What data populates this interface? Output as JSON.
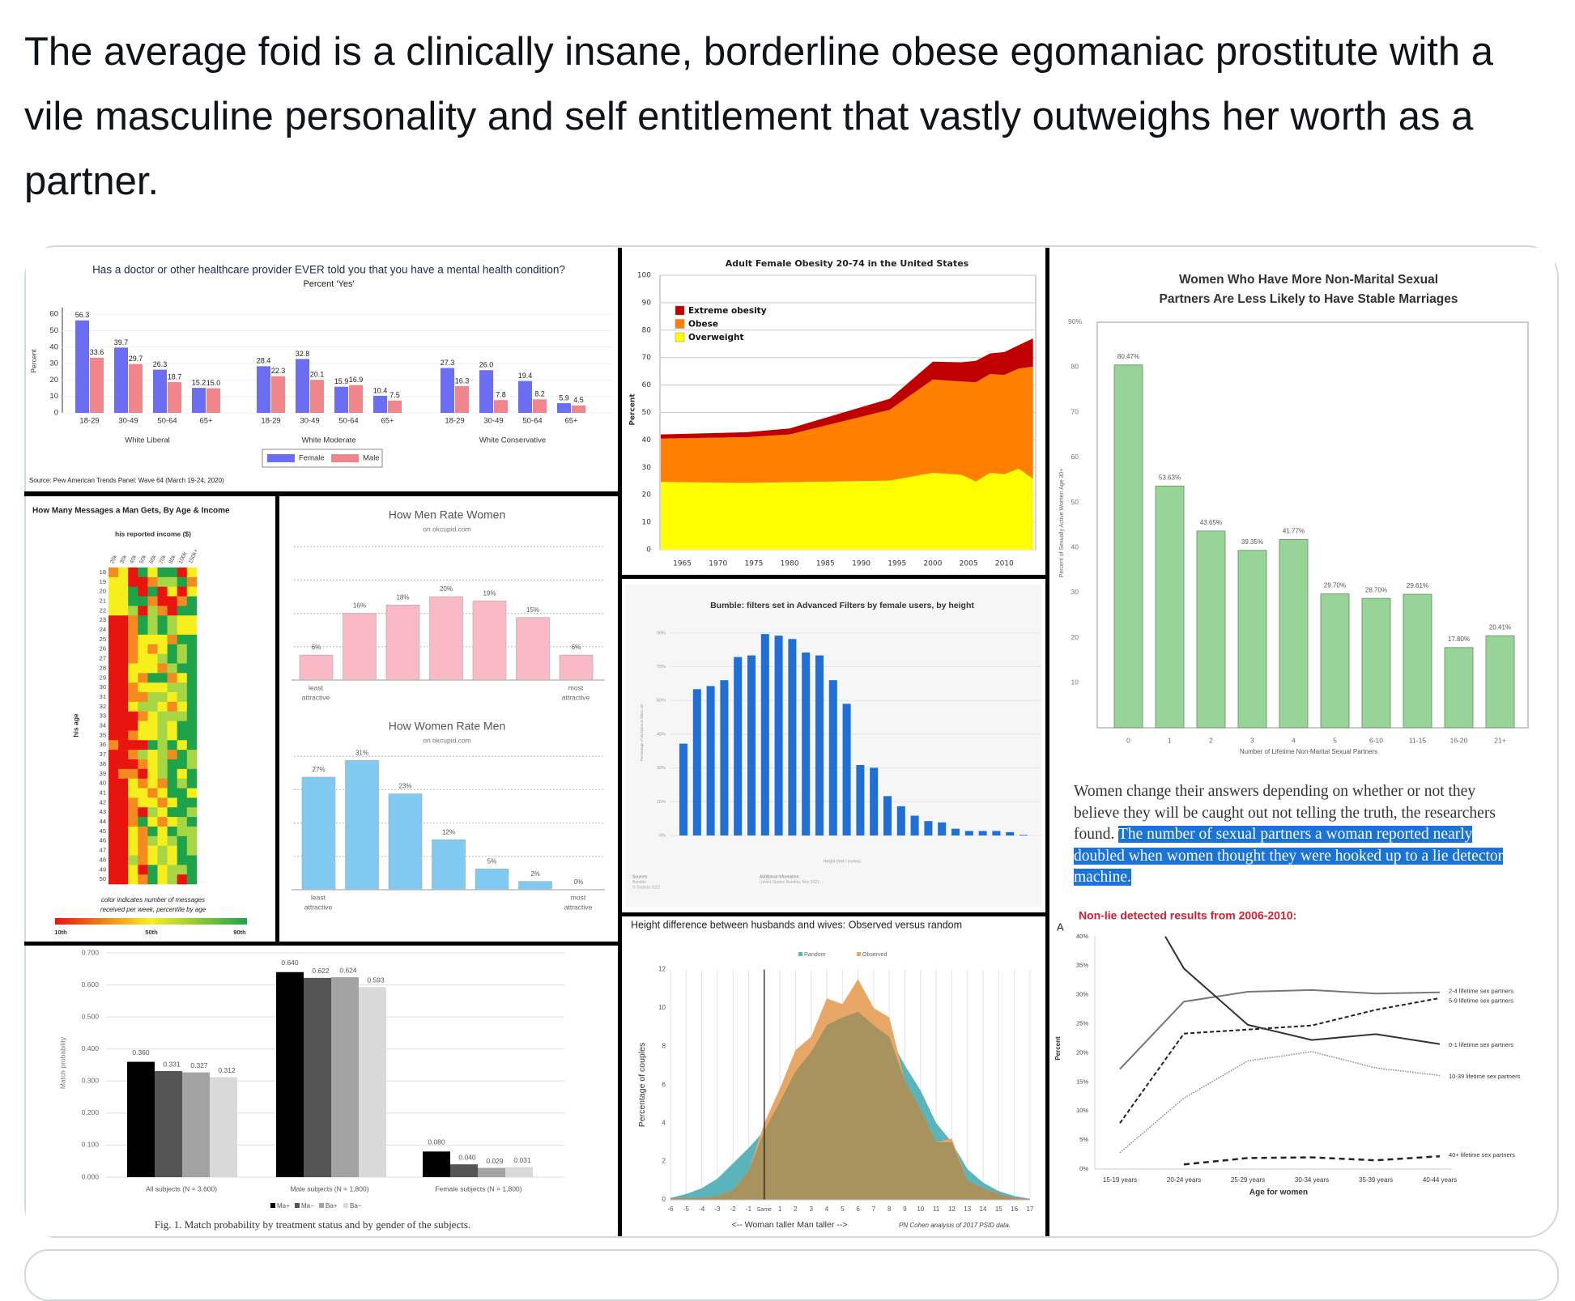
{
  "post": {
    "text": "The average foid is a clinically insane, borderline obese egomaniac prostitute with a vile masculine personality and self entitlement that vastly outweighs her worth as a partner."
  },
  "article_excerpt": {
    "text": "Women change their answers depending on whether or not they believe they will be caught out not telling the truth, the researchers found. ",
    "highlighted_text": "The number of sexual partners a woman reported nearly doubled when women thought they were hooked up to a lie detector machine.",
    "highlight_color": "#1a73d9"
  },
  "chart_data": [
    {
      "type": "bar",
      "title": "Has a doctor or other healthcare provider EVER told you that you have a mental health condition?",
      "subtitle": "Percent 'Yes'",
      "ylabel": "Percent",
      "ylim": [
        0,
        70
      ],
      "yticks": [
        0,
        10,
        20,
        30,
        40,
        50,
        60
      ],
      "groups": [
        "White Liberal",
        "White Moderate",
        "White Conservative"
      ],
      "categories": [
        "18-29",
        "30-49",
        "50-64",
        "65+"
      ],
      "series": [
        {
          "name": "Female",
          "color": "#6b6ef2",
          "values": [
            [
              56.3,
              39.7,
              26.3,
              15.2
            ],
            [
              28.4,
              32.8,
              15.9,
              10.4
            ],
            [
              27.3,
              26.0,
              19.4,
              5.9
            ]
          ],
          "value_labels": [
            [
              "56.3",
              "39.7",
              "26.3",
              "15.2"
            ],
            [
              "28.4",
              "32.8",
              "15.9",
              "10.4"
            ],
            [
              "27.3",
              "26.0",
              "19.4",
              "5.9"
            ]
          ]
        },
        {
          "name": "Male",
          "color": "#f0868c",
          "values": [
            [
              33.6,
              29.7,
              18.7,
              15.0
            ],
            [
              22.3,
              20.1,
              16.9,
              7.5
            ],
            [
              16.3,
              7.8,
              8.2,
              4.5
            ]
          ],
          "value_labels": [
            [
              "33.6",
              "29.7",
              "18.7",
              "15.0"
            ],
            [
              "22.3",
              "20.1",
              "16.9",
              "7.5"
            ],
            [
              "16.3",
              "7.8",
              "8.2",
              "4.5"
            ]
          ]
        }
      ],
      "legend_position": "bottom",
      "source": "Source: Pew American Trends Panel: Wave 64 (March 19-24, 2020)"
    },
    {
      "type": "heatmap",
      "title": "How Many Messages a Man Gets, By Age & Income",
      "xlabel": "his reported income ($)",
      "ylabel": "his age",
      "x": [
        "20k",
        "30k",
        "40k",
        "50k",
        "60k",
        "70k",
        "80k",
        "100k",
        "150k+"
      ],
      "y": [
        "18",
        "19",
        "20",
        "21",
        "22",
        "23",
        "24",
        "25",
        "26",
        "27",
        "28",
        "29",
        "30",
        "31",
        "32",
        "33",
        "34",
        "35",
        "36",
        "37",
        "38",
        "39",
        "40",
        "41",
        "42",
        "43",
        "44",
        "45",
        "46",
        "47",
        "48",
        "49",
        "50"
      ],
      "level_percentiles": [
        10,
        30,
        50,
        70,
        90
      ],
      "level_colors": [
        "#e8150f",
        "#f58a1f",
        "#f7ef1c",
        "#a6d643",
        "#1ea34a"
      ],
      "rows": [
        "120424402",
        "220013341",
        "224040202",
        "224410014",
        "223031044",
        "001434322",
        "001434322",
        "001222144",
        "001212434",
        "001223434",
        "002221344",
        "002144124",
        "001222334",
        "001133234",
        "002332124",
        "000123334",
        "000223244",
        "001223244",
        "100043424",
        "001323143",
        "000123443",
        "011023424",
        "002121434",
        "002212442",
        "001221244",
        "001032443",
        "001421234",
        "002142433",
        "002132343",
        "002123243",
        "003123244",
        "002042334",
        "002142304"
      ],
      "caption": [
        "color indicates number of messages",
        "received per week, percentile by age"
      ],
      "scale_labels": [
        "10th",
        "50th",
        "90th"
      ]
    },
    {
      "type": "bar",
      "title": "How Men Rate Women",
      "subtitle": "on okcupid.com",
      "values": [
        6,
        16,
        18,
        20,
        19,
        15,
        6
      ],
      "value_labels": [
        "6%",
        "16%",
        "18%",
        "20%",
        "19%",
        "15%",
        "6%"
      ],
      "axis_left": [
        "least",
        "attractive"
      ],
      "axis_right": [
        "most",
        "attractive"
      ],
      "color": "#f9b9c5",
      "grid_values": [
        8,
        16,
        24,
        32
      ]
    },
    {
      "type": "bar",
      "title": "How Women Rate Men",
      "subtitle": "on okcupid.com",
      "values": [
        27,
        31,
        23,
        12,
        5,
        2,
        0
      ],
      "value_labels": [
        "27%",
        "31%",
        "23%",
        "12%",
        "5%",
        "2%",
        "0%"
      ],
      "axis_left": [
        "least",
        "attractive"
      ],
      "axis_right": [
        "most",
        "attractive"
      ],
      "color": "#80c9f0",
      "grid_values": [
        8,
        16,
        24,
        32
      ]
    },
    {
      "type": "bar",
      "ylabel": "Match probability",
      "ylim": [
        0,
        0.7
      ],
      "yticks": [
        0,
        0.1,
        0.2,
        0.3,
        0.4,
        0.5,
        0.6,
        0.7
      ],
      "ytick_labels": [
        "0.000",
        "0.100",
        "0.200",
        "0.300",
        "0.400",
        "0.500",
        "0.600",
        "0.700"
      ],
      "categories": [
        "All subjects (N = 3,600)",
        "Male subjects (N = 1,800)",
        "Female subjects (N = 1,800)"
      ],
      "series": [
        {
          "name": "Ma+",
          "color": "#000000",
          "values": [
            0.36,
            0.64,
            0.08
          ],
          "value_labels": [
            "0.360",
            "0.640",
            "0.080"
          ]
        },
        {
          "name": "Ma−",
          "color": "#555555",
          "values": [
            0.331,
            0.622,
            0.04
          ],
          "value_labels": [
            "0.331",
            "0.622",
            "0.040"
          ]
        },
        {
          "name": "Ba+",
          "color": "#a3a3a3",
          "values": [
            0.327,
            0.624,
            0.029
          ],
          "value_labels": [
            "0.327",
            "0.624",
            "0.029"
          ]
        },
        {
          "name": "Ba−",
          "color": "#d9d9d9",
          "values": [
            0.312,
            0.593,
            0.031
          ],
          "value_labels": [
            "0.312",
            "0.593",
            "0.031"
          ]
        }
      ],
      "legend_position": "bottom",
      "caption": "Fig. 1. Match probability by treatment status and by gender of the subjects."
    },
    {
      "type": "area",
      "stacked": true,
      "title": "Adult Female Obesity 20-74 in the United States",
      "ylabel": "Percent",
      "ylim": [
        0,
        100
      ],
      "yticks": [
        0,
        10,
        20,
        30,
        40,
        50,
        60,
        70,
        80,
        90,
        100
      ],
      "xticks": [
        1965,
        1970,
        1975,
        1980,
        1985,
        1990,
        1995,
        2000,
        2005,
        2010
      ],
      "x": [
        1962,
        1974,
        1980,
        1994,
        2000,
        2004,
        2006,
        2008,
        2010,
        2012,
        2014
      ],
      "series": [
        {
          "name": "Overweight",
          "color": "#ffff00",
          "values": [
            24.7,
            24.3,
            24.6,
            25.2,
            28.0,
            27.3,
            24.8,
            28.0,
            27.5,
            29.5,
            25.8
          ]
        },
        {
          "name": "Obese",
          "color": "#ff8000",
          "values": [
            15.8,
            16.7,
            17.4,
            25.8,
            34.0,
            34.0,
            36.2,
            36.0,
            36.2,
            36.5,
            40.9
          ]
        },
        {
          "name": "Extreme obesity",
          "color": "#c00000",
          "values": [
            1.5,
            1.8,
            2.2,
            4.0,
            6.5,
            7.0,
            7.8,
            7.5,
            8.3,
            8.5,
            10.3
          ]
        }
      ],
      "legend_order": [
        "Extreme obesity",
        "Obese",
        "Overweight"
      ],
      "legend_position": "top-left",
      "grid": true
    },
    {
      "type": "bar",
      "title": "Bumble: filters set in Advanced Filters by female users, by height",
      "ylim": [
        0,
        90
      ],
      "yticks": [
        0,
        15,
        30,
        45,
        60,
        75,
        90
      ],
      "ytick_labels": [
        "0%",
        "15%",
        "30%",
        "45%",
        "60%",
        "75%",
        "90%"
      ],
      "values": [
        40.8,
        65,
        66.4,
        69,
        79.3,
        80,
        89.5,
        88.8,
        87.3,
        81.3,
        80,
        69,
        58.5,
        31.3,
        30.1,
        17.5,
        13,
        8.8,
        6.4,
        5.8,
        3,
        2,
        2,
        2,
        1.5,
        0.3
      ],
      "color": "#1f6fd6",
      "ylabel": "Percentage of inclusion in filters set",
      "xlabel": "Height (feet / inches)",
      "sources": [
        "Sources",
        "Bumble",
        "© Statista 2022"
      ],
      "additional_information": [
        "Additional Information:",
        "United States; Bumble; Nov 2021"
      ],
      "grid": true
    },
    {
      "type": "area",
      "title": "Height difference between husbands and wives: Observed versus random",
      "ylabel": "Percentage of couples",
      "xlabel": "<-- Woman taller  Man taller -->",
      "note": "PN Cohen analysis of 2017 PSID data.",
      "ylim": [
        0,
        12
      ],
      "yticks": [
        0,
        2,
        4,
        6,
        8,
        10,
        12
      ],
      "x": [
        -6,
        -5,
        -4,
        -3,
        -2,
        -1,
        0,
        1,
        2,
        3,
        4,
        5,
        6,
        7,
        8,
        9,
        10,
        11,
        12,
        13,
        14,
        15,
        16,
        17
      ],
      "xtick_labels": [
        "-6",
        "-5",
        "-4",
        "-3",
        "-2",
        "-1",
        "Same",
        "1",
        "2",
        "3",
        "4",
        "5",
        "6",
        "7",
        "8",
        "9",
        "10",
        "11",
        "12",
        "13",
        "14",
        "15",
        "16",
        "17"
      ],
      "series": [
        {
          "name": "Random",
          "color": "#5ab4b9",
          "values": [
            0.1,
            0.3,
            0.6,
            1.1,
            1.9,
            2.7,
            3.6,
            5.1,
            6.7,
            7.7,
            9.1,
            9.5,
            9.8,
            9.1,
            8.5,
            7.0,
            5.7,
            4.0,
            3.0,
            1.6,
            0.9,
            0.45,
            0.2,
            0.05
          ]
        },
        {
          "name": "Observed",
          "color": "#e8a766",
          "values": [
            0.05,
            0.1,
            0.1,
            0.2,
            0.5,
            1.5,
            4.0,
            5.8,
            7.8,
            8.5,
            10.5,
            10.2,
            11.5,
            10.0,
            9.5,
            6.2,
            4.7,
            3.0,
            3.2,
            1.0,
            0.6,
            0.3,
            0.1,
            0.05
          ]
        }
      ],
      "overlap_color": "#a8925e",
      "legend_position": "top"
    },
    {
      "type": "bar",
      "title": [
        "Women Who Have More Non-Marital Sexual",
        "Partners Are Less Likely to Have Stable Marriages"
      ],
      "ylabel": "Percent of Sexually Active Women Age 30+",
      "xlabel": "Number of Lifetime Non-Marital Sexual Partners",
      "ylim": [
        0,
        90
      ],
      "yticks": [
        10,
        20,
        30,
        40,
        50,
        60,
        70,
        80,
        90
      ],
      "ytick_labels": [
        "10",
        "20",
        "30",
        "40",
        "50",
        "60",
        "70",
        "80",
        "90%"
      ],
      "categories": [
        "0",
        "1",
        "2",
        "3",
        "4",
        "5",
        "6-10",
        "11-15",
        "16-20",
        "21+"
      ],
      "values": [
        80.47,
        53.63,
        43.65,
        39.35,
        41.77,
        29.7,
        28.7,
        29.61,
        17.8,
        20.41
      ],
      "value_labels": [
        "80.47%",
        "53.63%",
        "43.65%",
        "39.35%",
        "41.77%",
        "29.70%",
        "28.70%",
        "29.61%",
        "17.80%",
        "20.41%"
      ],
      "color": "#98d398"
    },
    {
      "type": "line",
      "title": "Non-lie detected results from 2006-2010:",
      "title_color": "#d42030",
      "panel_label": "A",
      "ylabel": "Percent",
      "xlabel": "Age for women",
      "ylim": [
        0,
        40
      ],
      "yticks": [
        0,
        5,
        10,
        15,
        20,
        25,
        30,
        35,
        40
      ],
      "ytick_labels": [
        "0%",
        "5%",
        "10%",
        "15%",
        "20%",
        "25%",
        "30%",
        "35%",
        "40%"
      ],
      "categories": [
        "15-19 years",
        "20-24 years",
        "25-29 years",
        "30-34 years",
        "35-39 years",
        "40-44 years"
      ],
      "series": [
        {
          "name": "2-4 lifetime sex partners",
          "style": "solid-gray",
          "values": [
            17.2,
            28.8,
            30.5,
            30.8,
            30.2,
            30.4
          ]
        },
        {
          "name": "5-9 lifetime sex partners",
          "style": "dashed",
          "values": [
            7.9,
            23.3,
            24.0,
            24.7,
            27.4,
            29.4
          ]
        },
        {
          "name": "0-1 lifetime sex partners",
          "style": "solid",
          "values": [
            null,
            34.5,
            24.8,
            22.2,
            23.2,
            21.5
          ]
        },
        {
          "name": "10-39 lifetime sex partners",
          "style": "dotted",
          "values": [
            2.8,
            12.2,
            18.6,
            20.2,
            17.4,
            16.1
          ]
        },
        {
          "name": "40+ lifetime sex partners",
          "style": "bold-dashed",
          "values": [
            null,
            0.8,
            1.9,
            2.0,
            1.5,
            2.2
          ]
        }
      ]
    }
  ]
}
